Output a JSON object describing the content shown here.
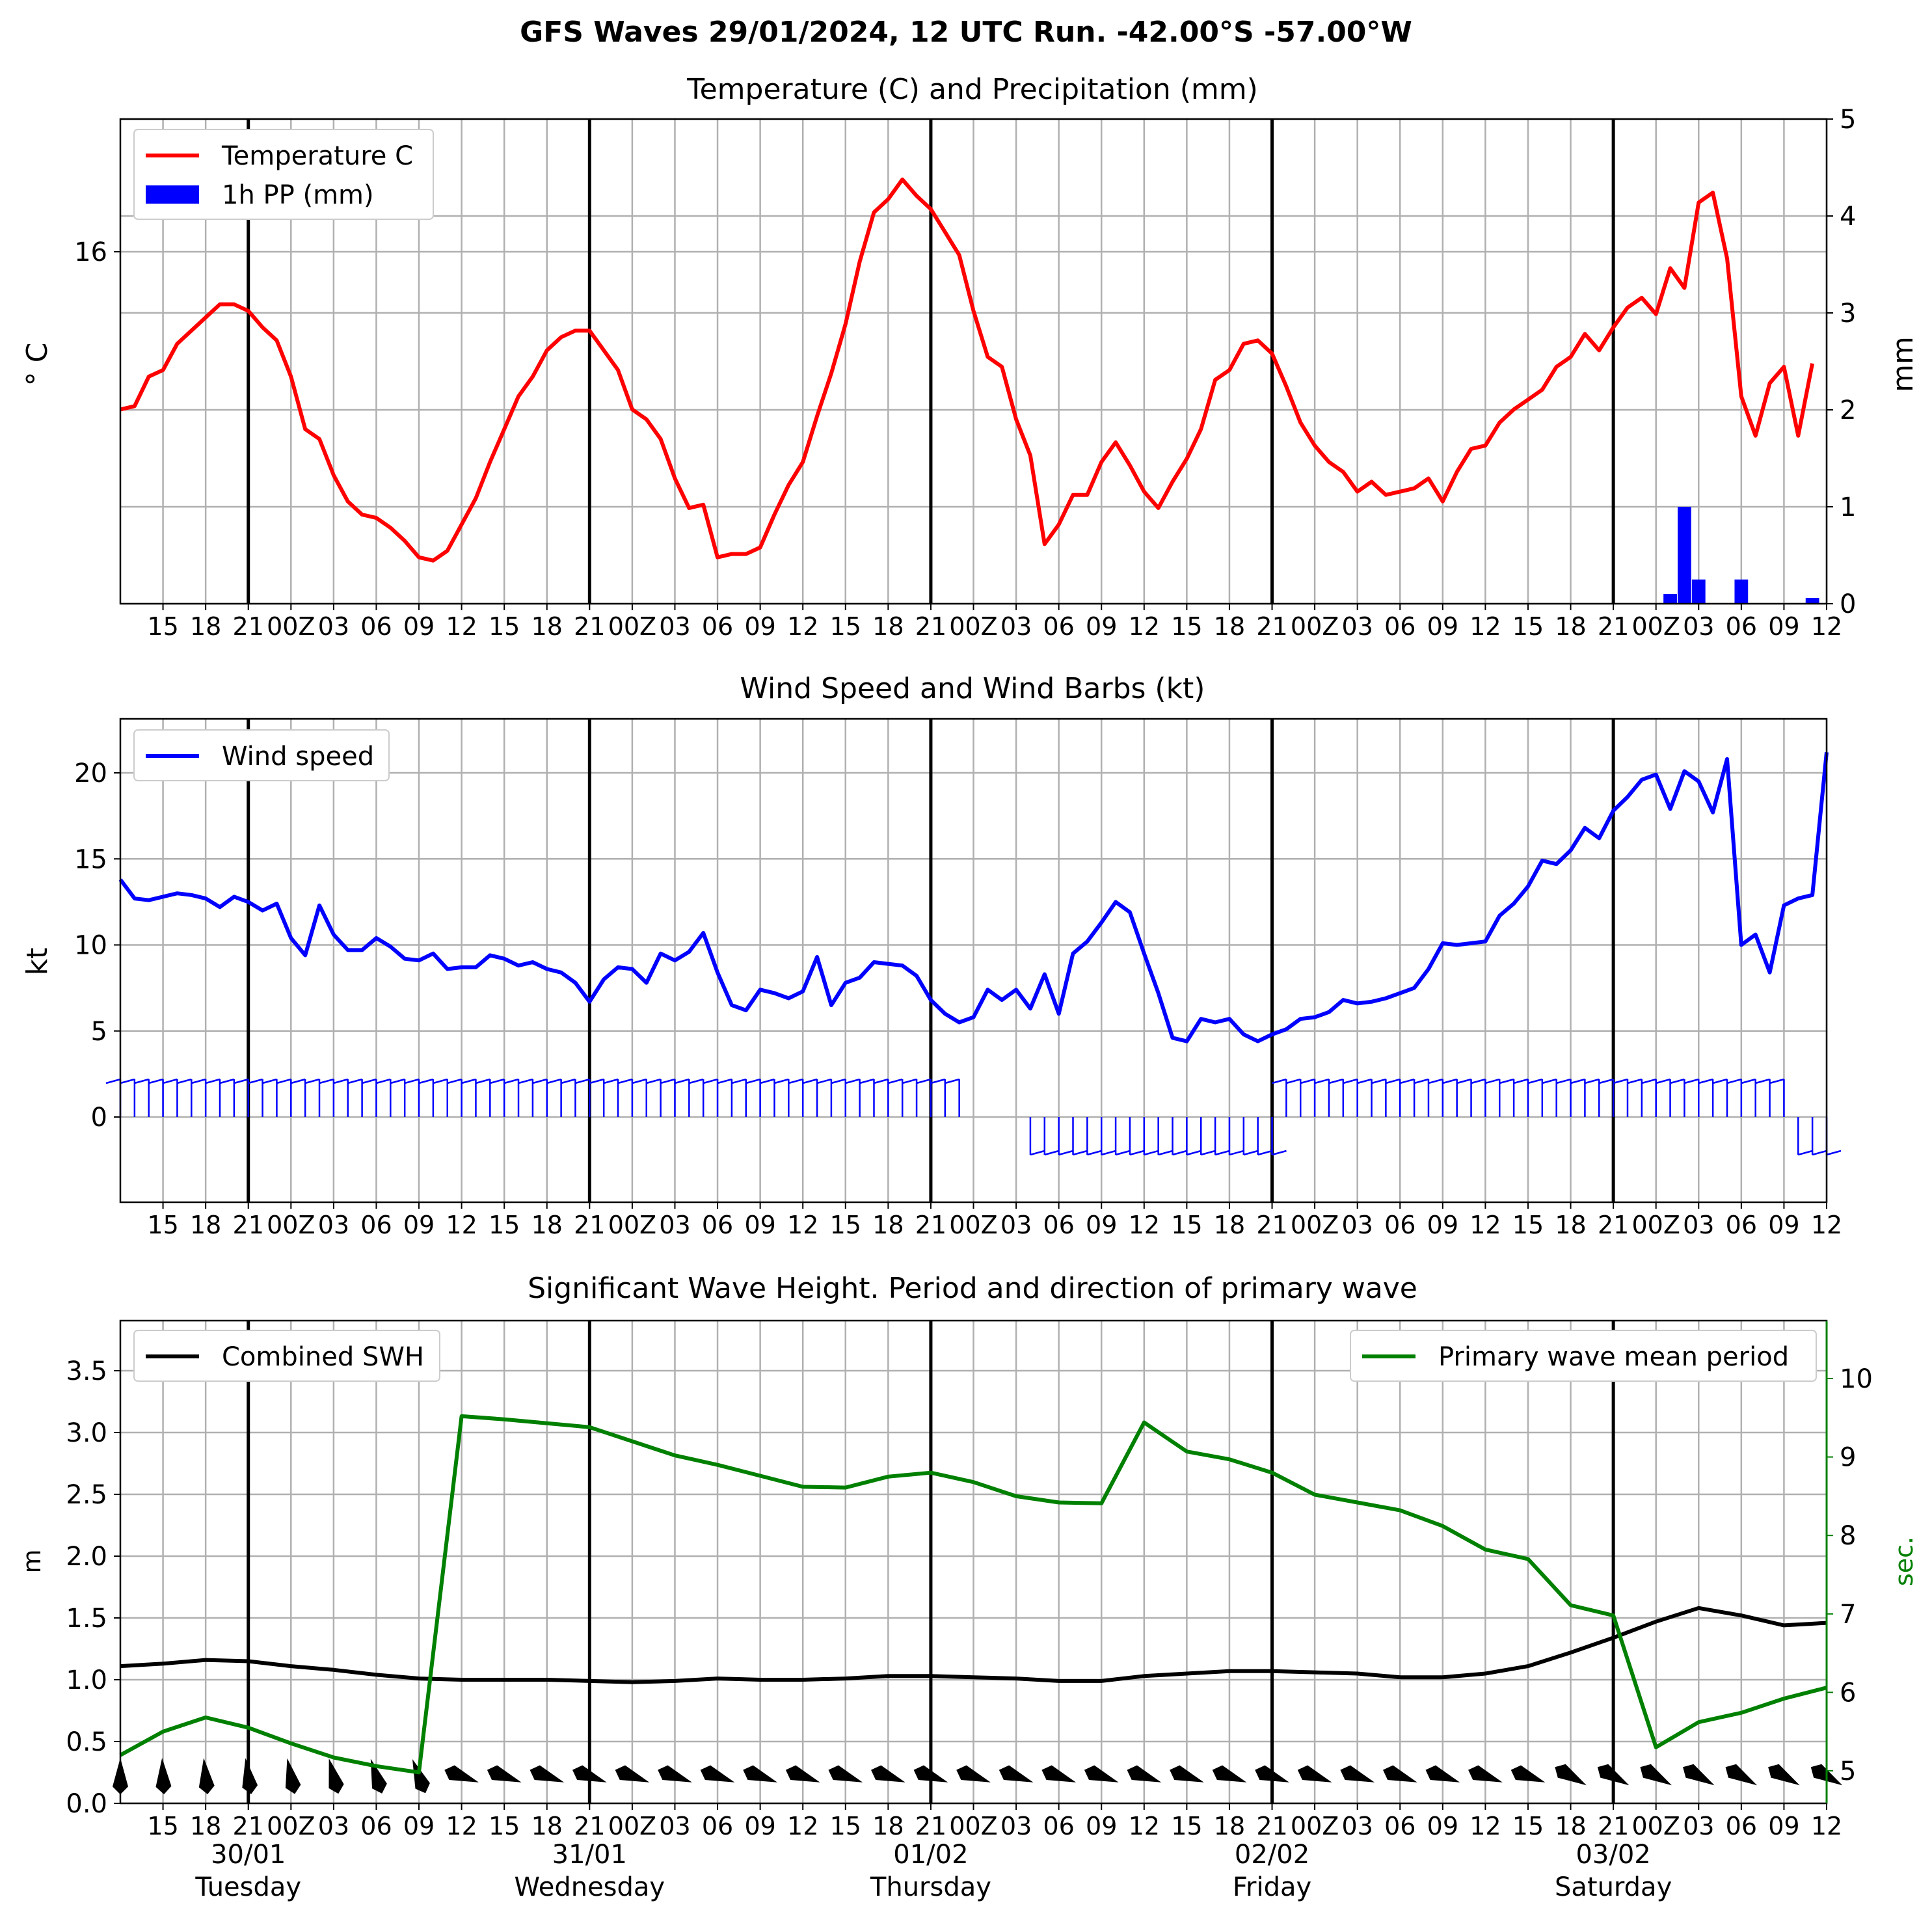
{
  "page_title": "GFS Waves 29/01/2024, 12 UTC Run. -42.00°S -57.00°W",
  "x_axis": {
    "tick_labels": [
      "15",
      "18",
      "21",
      "00Z",
      "03",
      "06",
      "09",
      "12",
      "15",
      "18",
      "21",
      "00Z",
      "03",
      "06",
      "09",
      "12",
      "15",
      "18",
      "21",
      "00Z",
      "03",
      "06",
      "09",
      "12",
      "15",
      "18",
      "21",
      "00Z",
      "03",
      "06",
      "09",
      "12",
      "15",
      "18",
      "21",
      "00Z",
      "03",
      "06",
      "09",
      "12"
    ],
    "day_labels": [
      {
        "date": "30/01",
        "weekday": "Tuesday"
      },
      {
        "date": "31/01",
        "weekday": "Wednesday"
      },
      {
        "date": "01/02",
        "weekday": "Thursday"
      },
      {
        "date": "02/02",
        "weekday": "Friday"
      },
      {
        "date": "03/02",
        "weekday": "Saturday"
      }
    ]
  },
  "chart_data": [
    {
      "type": "line",
      "title": "Temperature (C) and Precipitation (mm)",
      "ylabel": "$^\\circ$C",
      "ylabel_display": "° C",
      "y_right_label": "mm",
      "yticks_left": [
        "16"
      ],
      "yticks_right": [
        "0",
        "1",
        "2",
        "3",
        "4",
        "5"
      ],
      "ylim_right": [
        0,
        5
      ],
      "legend": {
        "placement": "top-left",
        "entries": [
          "Temperature C",
          "1h PP (mm)"
        ]
      },
      "grid": true,
      "x_hours": [
        0,
        1,
        2,
        3,
        4,
        5,
        6,
        7,
        8,
        9,
        10,
        11,
        12,
        13,
        14,
        15,
        16,
        17,
        18,
        19,
        20,
        21,
        22,
        23,
        24,
        25,
        26,
        27,
        28,
        29,
        30,
        31,
        32,
        33,
        34,
        35,
        36,
        37,
        38,
        39,
        40,
        41,
        42,
        43,
        44,
        45,
        46,
        47,
        48,
        49,
        50,
        51,
        52,
        53,
        54,
        55,
        56,
        57,
        58,
        59,
        60,
        61,
        62,
        63,
        64,
        65,
        66,
        67,
        68,
        69,
        70,
        71,
        72,
        73,
        74,
        75,
        76,
        77,
        78,
        79,
        80,
        81,
        82,
        83,
        84,
        85,
        86,
        87,
        88,
        89,
        90,
        91,
        92,
        93,
        94,
        95,
        96,
        97,
        98,
        99,
        100,
        101,
        102,
        103,
        104,
        105,
        106,
        107,
        108,
        109,
        110,
        111,
        112,
        113,
        114,
        115,
        116,
        117,
        118,
        119,
        120
      ],
      "series": [
        {
          "name": "Temperature C",
          "color": "#ff0000",
          "kind": "line",
          "axis": "left",
          "values": [
            13.6,
            13.65,
            14.1,
            14.2,
            14.6,
            14.8,
            15.0,
            15.2,
            15.2,
            15.1,
            14.85,
            14.65,
            14.1,
            13.3,
            13.15,
            12.6,
            12.2,
            12.0,
            11.95,
            11.8,
            11.6,
            11.35,
            11.3,
            11.45,
            11.85,
            12.25,
            12.8,
            13.3,
            13.8,
            14.1,
            14.5,
            14.7,
            14.8,
            14.8,
            14.5,
            14.2,
            13.6,
            13.45,
            13.15,
            12.55,
            12.1,
            12.15,
            11.35,
            11.4,
            11.4,
            11.5,
            12.0,
            12.45,
            12.8,
            13.5,
            14.15,
            14.9,
            15.85,
            16.6,
            16.8,
            17.1,
            16.85,
            16.65,
            16.3,
            15.95,
            15.1,
            14.4,
            14.25,
            13.45,
            12.9,
            11.55,
            11.85,
            12.3,
            12.3,
            12.8,
            13.1,
            12.75,
            12.35,
            12.1,
            12.5,
            12.85,
            13.3,
            14.05,
            14.2,
            14.6,
            14.65,
            14.45,
            13.95,
            13.4,
            13.05,
            12.8,
            12.65,
            12.35,
            12.5,
            12.3,
            12.35,
            12.4,
            12.55,
            12.2,
            12.65,
            13.0,
            13.05,
            13.4,
            13.6,
            13.75,
            13.9,
            14.25,
            14.4,
            14.75,
            14.5,
            14.85,
            15.15,
            15.3,
            15.05,
            15.75,
            15.45,
            16.75,
            16.9,
            15.9,
            13.8,
            13.2,
            14.0,
            14.25,
            13.2,
            14.3
          ]
        },
        {
          "name": "1h PP (mm)",
          "color": "#0000ff",
          "kind": "bar",
          "axis": "right",
          "values": [
            {
              "x": 109,
              "y": 0.1
            },
            {
              "x": 110,
              "y": 1.0
            },
            {
              "x": 111,
              "y": 0.25
            },
            {
              "x": 114,
              "y": 0.25
            },
            {
              "x": 119,
              "y": 0.06
            }
          ]
        }
      ]
    },
    {
      "type": "line",
      "title": "Wind Speed and Wind Barbs (kt)",
      "ylabel": "kt",
      "yticks": [
        "0",
        "5",
        "10",
        "15",
        "20"
      ],
      "ylim": [
        -5,
        23
      ],
      "legend": {
        "placement": "top-left",
        "entries": [
          "Wind speed"
        ]
      },
      "grid": true,
      "series": [
        {
          "name": "Wind speed",
          "color": "#0000ff",
          "values": [
            13.8,
            12.7,
            12.6,
            12.8,
            13.0,
            12.9,
            12.7,
            12.2,
            12.8,
            12.5,
            12.0,
            12.4,
            10.4,
            9.4,
            12.3,
            10.6,
            9.7,
            9.7,
            10.4,
            9.9,
            9.2,
            9.1,
            9.5,
            8.6,
            8.7,
            8.7,
            9.4,
            9.2,
            8.8,
            9.0,
            8.6,
            8.4,
            7.8,
            6.7,
            8.0,
            8.7,
            8.6,
            7.8,
            9.5,
            9.1,
            9.6,
            10.7,
            8.4,
            6.5,
            6.2,
            7.4,
            7.2,
            6.9,
            7.3,
            9.3,
            6.5,
            7.8,
            8.1,
            9.0,
            8.9,
            8.8,
            8.2,
            6.8,
            6.0,
            5.5,
            5.8,
            7.4,
            6.8,
            7.4,
            6.3,
            8.3,
            6.0,
            9.5,
            10.2,
            11.3,
            12.5,
            11.9,
            9.5,
            7.2,
            4.6,
            4.4,
            5.7,
            5.5,
            5.7,
            4.8,
            4.4,
            4.8,
            5.1,
            5.7,
            5.8,
            6.1,
            6.8,
            6.6,
            6.7,
            6.9,
            7.2,
            7.5,
            8.6,
            10.1,
            10.0,
            10.1,
            10.2,
            11.7,
            12.4,
            13.4,
            14.9,
            14.7,
            15.5,
            16.8,
            16.2,
            17.8,
            18.6,
            19.6,
            19.9,
            17.9,
            20.1,
            19.5,
            17.7,
            20.8,
            10.0,
            10.6,
            8.4,
            12.3,
            12.7,
            12.9,
            21.2
          ]
        }
      ],
      "barbs": "wind barbs drawn along y=0 (from ~03 Thursday to ~Friday 00Z barbs are below axis)"
    },
    {
      "type": "line",
      "title": "Significant Wave Height. Period and direction of primary wave",
      "ylabel": "m",
      "y_right_label": "sec.",
      "yticks_left": [
        "0.0",
        "0.5",
        "1.0",
        "1.5",
        "2.0",
        "2.5",
        "3.0",
        "3.5"
      ],
      "yticks_right": [
        "5",
        "6",
        "7",
        "8",
        "9",
        "10"
      ],
      "ylim_left": [
        0,
        3.9
      ],
      "ylim_right": [
        4.62,
        10.82
      ],
      "grid": true,
      "legend_left": {
        "placement": "top-left",
        "entries": [
          "Combined SWH"
        ]
      },
      "legend_right": {
        "placement": "top-right",
        "entries": [
          "Primary wave mean period"
        ]
      },
      "x_hours_3h": [
        0,
        3,
        6,
        9,
        12,
        15,
        18,
        21,
        24,
        27,
        30,
        33,
        36,
        39,
        42,
        45,
        48,
        51,
        54,
        57,
        60,
        63,
        66,
        69,
        72,
        75,
        78,
        81,
        84,
        87,
        90,
        93,
        96,
        99,
        102,
        105,
        108,
        111,
        114,
        117,
        120
      ],
      "series": [
        {
          "name": "Combined SWH",
          "color": "#000000",
          "axis": "left",
          "values": [
            1.11,
            1.13,
            1.16,
            1.15,
            1.11,
            1.08,
            1.04,
            1.01,
            1.0,
            1.0,
            1.0,
            0.99,
            0.98,
            0.99,
            1.01,
            1.0,
            1.0,
            1.01,
            1.03,
            1.03,
            1.02,
            1.01,
            0.99,
            0.99,
            1.03,
            1.05,
            1.07,
            1.07,
            1.06,
            1.05,
            1.02,
            1.02,
            1.05,
            1.11,
            1.22,
            1.34,
            1.47,
            1.58,
            1.52,
            1.44,
            1.46
          ]
        },
        {
          "name": "Primary wave mean period",
          "color": "#008000",
          "axis": "right",
          "values": [
            5.2,
            5.5,
            5.68,
            5.55,
            5.35,
            5.17,
            5.06,
            4.98,
            9.52,
            9.48,
            9.43,
            9.38,
            9.2,
            9.02,
            8.9,
            8.76,
            8.62,
            8.61,
            8.75,
            8.8,
            8.68,
            8.5,
            8.42,
            8.41,
            9.44,
            9.07,
            8.97,
            8.8,
            8.52,
            8.42,
            8.32,
            8.12,
            7.82,
            7.7,
            7.11,
            6.98,
            5.3,
            5.62,
            5.74,
            5.92,
            6.06
          ]
        }
      ],
      "wave_direction_arrows": "black direction arrows drawn along y≈0.22 at each 3h step"
    }
  ]
}
